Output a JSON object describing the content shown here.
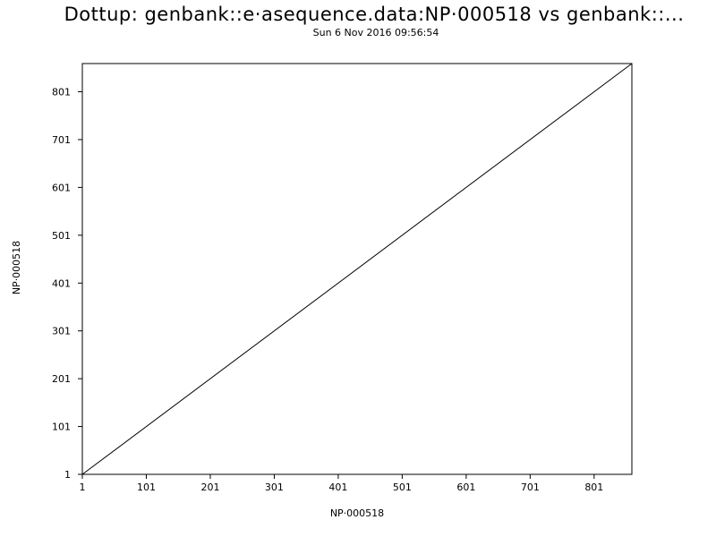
{
  "chart_data": {
    "type": "line",
    "title": "Dottup: genbank::e·asequence.data:NP·000518 vs genbank::...",
    "subtitle": "Sun  6 Nov 2016 09:56:54",
    "xlabel": "NP·000518",
    "ylabel": "NP·000518",
    "xlim": [
      1,
      860
    ],
    "ylim": [
      1,
      860
    ],
    "x_ticks": [
      1,
      101,
      201,
      301,
      401,
      501,
      601,
      701,
      801
    ],
    "y_ticks": [
      1,
      101,
      201,
      301,
      401,
      501,
      601,
      701,
      801
    ],
    "series": [
      {
        "x": [
          1,
          860
        ],
        "y": [
          1,
          860
        ]
      }
    ],
    "grid": false,
    "colors": {
      "line": "#000000",
      "frame": "#000000",
      "background": "#ffffff"
    }
  }
}
